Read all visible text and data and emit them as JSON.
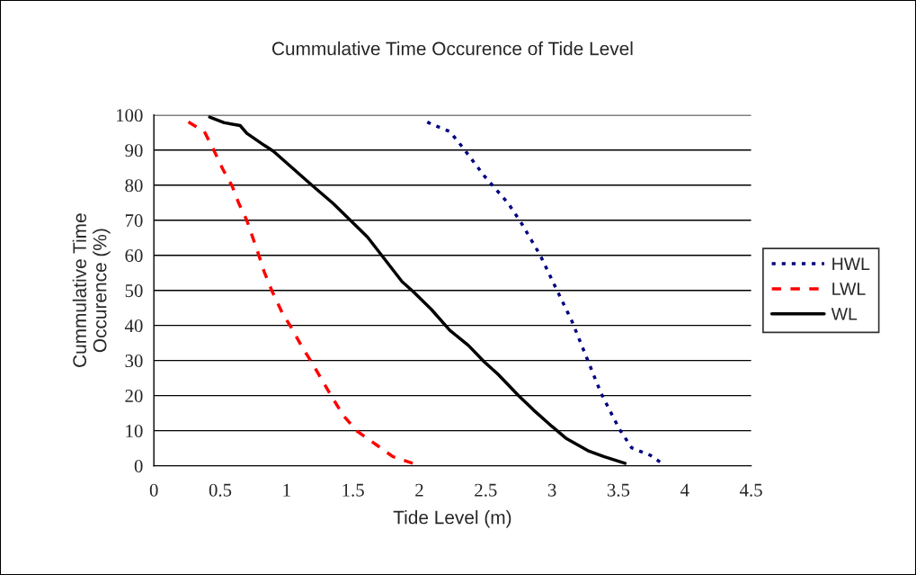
{
  "chart_data": {
    "type": "line",
    "title": "Cummulative Time Occurence of Tide Level",
    "xlabel": "Tide Level (m)",
    "ylabel": "Cummulative Time\nOccurence (%)",
    "xlim": [
      0,
      4.5
    ],
    "xticks": [
      0,
      0.5,
      1,
      1.5,
      2,
      2.5,
      3,
      3.5,
      4,
      4.5
    ],
    "ylim": [
      0,
      100
    ],
    "yticks": [
      0,
      10,
      20,
      30,
      40,
      50,
      60,
      70,
      80,
      90,
      100
    ],
    "grid": "y",
    "legend": "right",
    "marker": "none",
    "series": [
      {
        "name": "HWL",
        "color": "#000080",
        "line_style": "dotted",
        "x": [
          2.06,
          2.09,
          2.23,
          2.33,
          2.49,
          2.67,
          2.77,
          2.91,
          3.03,
          3.15,
          3.26,
          3.37,
          3.44,
          3.51,
          3.6,
          3.74,
          3.82
        ],
        "values": [
          98.0,
          97.4,
          95.3,
          90.6,
          82.6,
          74.8,
          69.1,
          60.1,
          50.6,
          41.2,
          30.9,
          20.6,
          15.4,
          10.3,
          5.1,
          3.0,
          0.9
        ]
      },
      {
        "name": "LWL",
        "color": "#ff0000",
        "line_style": "dashed",
        "x": [
          0.26,
          0.38,
          0.45,
          0.52,
          0.59,
          0.64,
          0.7,
          0.79,
          0.83,
          0.89,
          0.97,
          1.04,
          1.11,
          1.19,
          1.26,
          1.34,
          1.43,
          1.53,
          1.69,
          1.8,
          1.95
        ],
        "values": [
          98.0,
          95.3,
          90.1,
          84.5,
          79.7,
          74.8,
          70.0,
          60.1,
          55.4,
          49.8,
          43.4,
          39.1,
          34.3,
          29.4,
          24.9,
          19.7,
          14.2,
          9.9,
          5.6,
          2.6,
          0.7
        ]
      },
      {
        "name": "WL",
        "color": "#000000",
        "line_style": "solid",
        "x": [
          0.42,
          0.53,
          0.65,
          0.7,
          0.83,
          0.9,
          1.19,
          1.35,
          1.48,
          1.61,
          1.87,
          1.95,
          2.09,
          2.23,
          2.37,
          2.49,
          2.59,
          2.75,
          2.86,
          3.0,
          3.11,
          3.27,
          3.39,
          3.55
        ],
        "values": [
          99.4,
          97.8,
          97.0,
          94.8,
          91.4,
          89.7,
          80.0,
          74.8,
          70.0,
          65.2,
          52.5,
          49.8,
          44.6,
          38.6,
          34.3,
          29.6,
          26.2,
          19.9,
          15.9,
          11.2,
          7.7,
          4.3,
          2.6,
          0.7
        ]
      }
    ]
  }
}
